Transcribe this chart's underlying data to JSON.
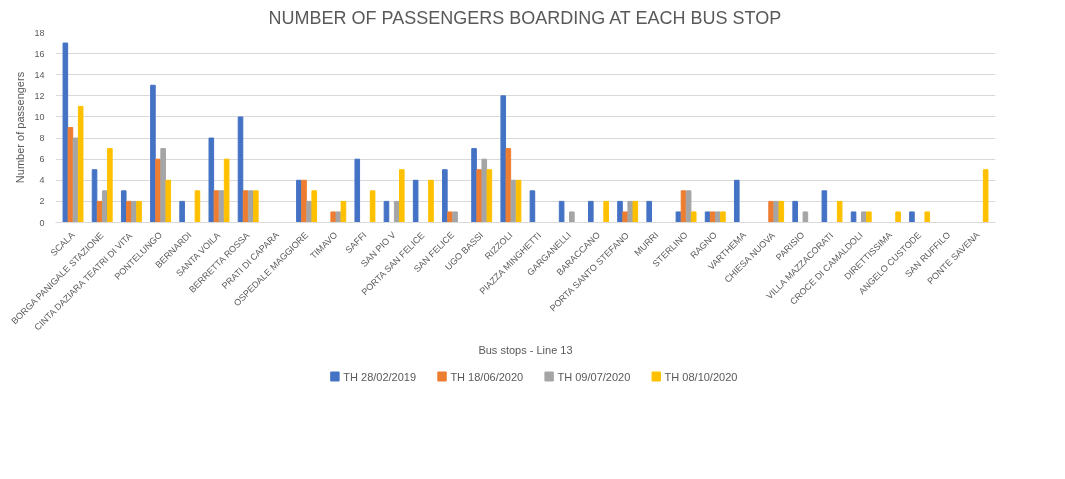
{
  "chart_data": {
    "type": "bar",
    "title": "NUMBER OF PASSENGERS BOARDING AT EACH BUS STOP",
    "xlabel": "Bus stops - Line 13",
    "ylabel": "Number of passengers",
    "categories": [
      "SCALA",
      "BORGA PANIGALE STAZIONE",
      "CINTA DAZIARA TEATRI DI VITA",
      "PONTELUNGO",
      "BERNARDI",
      "SANTA VOILA",
      "BERRETTA ROSSA",
      "PRATI DI CAPARA",
      "OSPEDALE MAGGIORE",
      "TIMAVO",
      "SAFFI",
      "SAN PIO V",
      "PORTA SAN FELICE",
      "SAN FELICE",
      "UGO BASSI",
      "RIZZOLI",
      "PIAZZA MINGHETTI",
      "GARGANELLI",
      "BARACCANO",
      "PORTA SANTO STEFANO",
      "MURRI",
      "STERLINO",
      "RAGNO",
      "VARTHEMA",
      "CHIESA NUOVA",
      "PARISIO",
      "VILLA MAZZACORATI",
      "CROCE DI CAMALDOLI",
      "DIRETTISSIMA",
      "ANGELO CUSTODE",
      "SAN RUFFILO",
      "PONTE SAVENA"
    ],
    "series": [
      {
        "name": "TH 28/02/2019",
        "color": "#4472c4",
        "values": [
          17,
          5,
          3,
          13,
          2,
          8,
          10,
          null,
          4,
          null,
          6,
          2,
          4,
          5,
          7,
          12,
          3,
          2,
          2,
          2,
          2,
          1,
          1,
          4,
          null,
          2,
          3,
          1,
          null,
          1,
          null,
          null
        ]
      },
      {
        "name": "TH 18/06/2020",
        "color": "#ed7d31",
        "values": [
          9,
          2,
          2,
          6,
          null,
          3,
          3,
          null,
          4,
          1,
          null,
          null,
          null,
          1,
          5,
          7,
          null,
          null,
          null,
          1,
          null,
          3,
          1,
          null,
          2,
          null,
          null,
          null,
          null,
          null,
          null,
          null
        ]
      },
      {
        "name": "TH 09/07/2020",
        "color": "#a5a5a5",
        "values": [
          8,
          3,
          2,
          7,
          null,
          3,
          3,
          null,
          2,
          1,
          null,
          2,
          null,
          1,
          6,
          4,
          null,
          1,
          null,
          2,
          null,
          3,
          1,
          null,
          2,
          1,
          null,
          1,
          null,
          null,
          null,
          null
        ]
      },
      {
        "name": "TH 08/10/2020",
        "color": "#ffc000",
        "values": [
          11,
          7,
          2,
          4,
          3,
          6,
          3,
          null,
          3,
          2,
          3,
          5,
          4,
          null,
          5,
          4,
          null,
          null,
          2,
          2,
          null,
          1,
          1,
          null,
          2,
          null,
          2,
          1,
          1,
          1,
          null,
          5
        ]
      }
    ],
    "ylim": [
      0,
      18
    ],
    "yticks": [
      0,
      2,
      4,
      6,
      8,
      10,
      12,
      14,
      16,
      18
    ],
    "grid": "y",
    "legend": "bottom"
  }
}
